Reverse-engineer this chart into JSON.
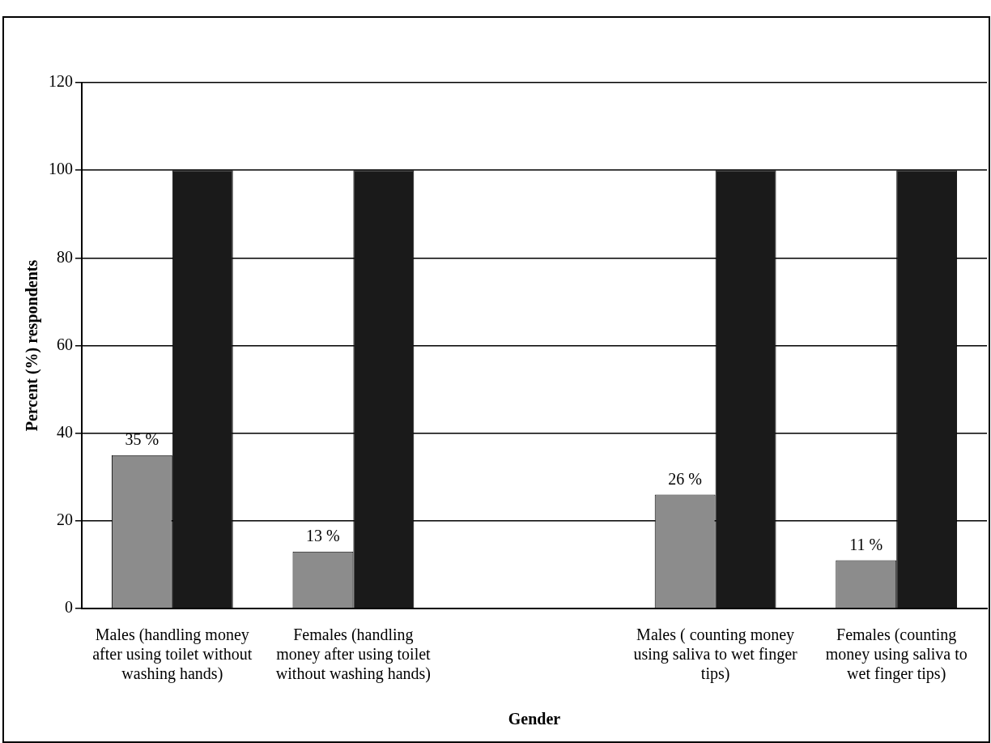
{
  "chart_data": {
    "type": "bar",
    "xlabel": "Gender",
    "ylabel": "Percent (%) respondents",
    "categories": [
      "Males (handling money after using toilet without washing hands)",
      "Females (handling money after using toilet without washing hands)",
      null,
      "Males ( counting money using saliva to wet finger tips)",
      "Females (counting money using saliva to wet finger tips)"
    ],
    "series": [
      {
        "color": "#8c8c8c",
        "values": [
          35,
          13,
          null,
          26,
          11
        ],
        "value_labels": [
          "35 %",
          "13 %",
          null,
          "26 %",
          "11 %"
        ]
      },
      {
        "color": "#1a1a1a",
        "values": [
          100,
          100,
          null,
          100,
          100
        ]
      }
    ],
    "ylim": [
      0,
      120
    ],
    "yticks": [
      0,
      20,
      40,
      60,
      80,
      100,
      120
    ],
    "grid": "y",
    "legend": false
  }
}
